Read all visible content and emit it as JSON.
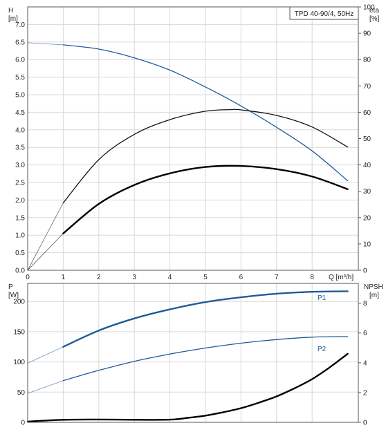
{
  "chart_data": [
    {
      "type": "line",
      "title": "TPD 40-90/4, 50Hz",
      "xlabel": "Q [m³/h]",
      "ylabel_left": [
        "H",
        "[m]"
      ],
      "ylabel_right": [
        "eta",
        "[%]"
      ],
      "xlim": [
        0,
        9.3
      ],
      "ylim_left": [
        0,
        7.5
      ],
      "ylim_right": [
        0,
        100
      ],
      "x_ticks": [
        "0",
        "1",
        "2",
        "3",
        "4",
        "5",
        "6",
        "7",
        "8"
      ],
      "y_ticks_left": [
        "0.0",
        "0.5",
        "1.0",
        "1.5",
        "2.0",
        "2.5",
        "3.0",
        "3.5",
        "4.0",
        "4.5",
        "5.0",
        "5.5",
        "6.0",
        "6.5",
        "7.0"
      ],
      "y_ticks_right": [
        "0",
        "10",
        "20",
        "30",
        "40",
        "50",
        "60",
        "70",
        "80",
        "90",
        "100"
      ],
      "grid": true,
      "series": [
        {
          "axis": "left",
          "color": "#1f5a9a",
          "x": [
            0,
            1,
            2,
            3,
            4,
            5,
            6,
            7,
            8,
            9
          ],
          "y": [
            6.48,
            6.42,
            6.3,
            6.05,
            5.7,
            5.22,
            4.68,
            4.07,
            3.4,
            2.55
          ],
          "extrapolated_below_x": 1
        },
        {
          "axis": "right",
          "color": "#111111",
          "x": [
            0,
            1,
            2,
            3,
            4,
            5,
            5.7,
            6,
            7,
            8,
            9
          ],
          "y": [
            0,
            25.6,
            42,
            51.6,
            57.2,
            60.4,
            61,
            60.9,
            58.8,
            54.4,
            46.8
          ],
          "extrapolated_below_x": 1
        },
        {
          "axis": "right",
          "color": "#000000",
          "bold": true,
          "x": [
            0,
            1,
            2,
            3,
            4,
            5,
            6,
            7,
            8,
            9
          ],
          "y": [
            0,
            14,
            25.2,
            32.4,
            36.8,
            39.2,
            39.6,
            38.4,
            35.6,
            30.8
          ],
          "extrapolated_below_x": 1
        }
      ]
    },
    {
      "type": "line",
      "xlabel": "",
      "ylabel_left": [
        "P",
        "[W]"
      ],
      "ylabel_right": [
        "NPSH",
        "[m]"
      ],
      "xlim": [
        0,
        9.3
      ],
      "ylim_left": [
        0,
        230
      ],
      "ylim_right": [
        0,
        9.33
      ],
      "y_ticks_left": [
        "0",
        "50",
        "100",
        "150",
        "200"
      ],
      "y_ticks_right": [
        "0",
        "2",
        "4",
        "6",
        "8"
      ],
      "grid": true,
      "series": [
        {
          "name": "P1",
          "axis": "left",
          "color": "#1f5a9a",
          "bold": true,
          "x": [
            0,
            1,
            2,
            3,
            4,
            5,
            6,
            7,
            8,
            9
          ],
          "y": [
            98,
            125,
            152,
            172,
            187,
            199,
            207,
            213,
            216,
            217
          ],
          "extrapolated_below_x": 1
        },
        {
          "name": "P2",
          "axis": "left",
          "color": "#1f5a9a",
          "x": [
            0,
            1,
            2,
            3,
            4,
            5,
            6,
            7,
            8,
            9
          ],
          "y": [
            48,
            69,
            86,
            101,
            113,
            123,
            131,
            137,
            141,
            142
          ],
          "extrapolated_below_x": 1
        },
        {
          "axis": "right",
          "color": "#000000",
          "bold": true,
          "x": [
            0,
            1,
            2,
            3,
            4,
            4.5,
            5,
            5.5,
            6,
            6.5,
            7,
            7.5,
            8,
            8.5,
            9
          ],
          "y": [
            0.05,
            0.17,
            0.19,
            0.17,
            0.18,
            0.3,
            0.45,
            0.68,
            0.95,
            1.32,
            1.74,
            2.28,
            2.9,
            3.7,
            4.6
          ]
        }
      ]
    }
  ]
}
